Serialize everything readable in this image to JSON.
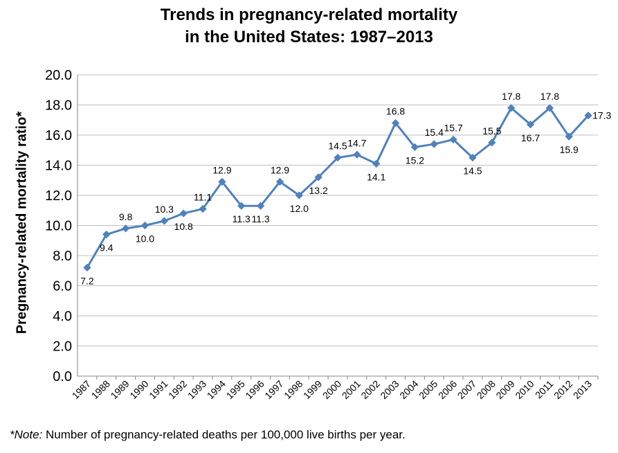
{
  "chart_data": {
    "type": "line",
    "title_line1": "Trends in pregnancy-related mortality",
    "title_line2": "in the United States: 1987–2013",
    "xlabel": "",
    "ylabel": "Pregnancy-related mortality ratio*",
    "ylim": [
      0,
      20
    ],
    "ytick_step": 2,
    "grid": true,
    "legend": "none",
    "line_color": "#4f81bd",
    "categories": [
      "1987",
      "1988",
      "1989",
      "1990",
      "1991",
      "1992",
      "1993",
      "1994",
      "1995",
      "1996",
      "1997",
      "1998",
      "1999",
      "2000",
      "2001",
      "2002",
      "2003",
      "2004",
      "2005",
      "2006",
      "2007",
      "2008",
      "2009",
      "2010",
      "2011",
      "2012",
      "2013"
    ],
    "values": [
      7.2,
      9.4,
      9.8,
      10.0,
      10.3,
      10.8,
      11.1,
      12.9,
      11.3,
      11.3,
      12.9,
      12.0,
      13.2,
      14.5,
      14.7,
      14.1,
      16.8,
      15.2,
      15.4,
      15.7,
      14.5,
      15.5,
      17.8,
      16.7,
      17.8,
      15.9,
      17.3
    ],
    "note_prefix": "*Note:",
    "note_text": " Number of pregnancy-related deaths per 100,000 live births per year."
  }
}
